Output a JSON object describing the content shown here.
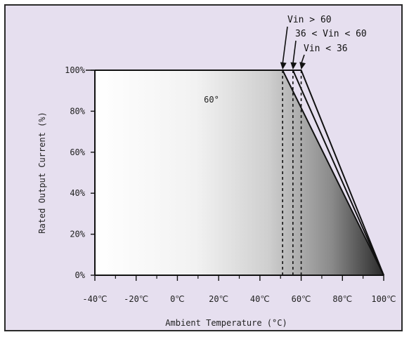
{
  "chart_data": {
    "type": "area",
    "title": "",
    "xlabel": "Ambient Temperature (°C)",
    "ylabel": "Rated Output Current (%)",
    "x_ticks": [
      {
        "value": -40,
        "label": "-40℃"
      },
      {
        "value": -20,
        "label": "-20℃"
      },
      {
        "value": 0,
        "label": "0℃"
      },
      {
        "value": 20,
        "label": "20℃"
      },
      {
        "value": 40,
        "label": "40℃"
      },
      {
        "value": 60,
        "label": "60℃"
      },
      {
        "value": 80,
        "label": "80℃"
      },
      {
        "value": 100,
        "label": "100℃"
      }
    ],
    "y_ticks": [
      {
        "value": 0,
        "label": "0%"
      },
      {
        "value": 20,
        "label": "20%"
      },
      {
        "value": 40,
        "label": "40%"
      },
      {
        "value": 60,
        "label": "60%"
      },
      {
        "value": 80,
        "label": "80%"
      },
      {
        "value": 100,
        "label": "100%"
      }
    ],
    "xlim": [
      -40,
      100
    ],
    "ylim": [
      0,
      100
    ],
    "grid": false,
    "series": [
      {
        "name": "Vin > 60",
        "x": [
          -40,
          51,
          100
        ],
        "y": [
          100,
          100,
          0
        ]
      },
      {
        "name": "36 < Vin < 60",
        "x": [
          -40,
          56,
          100
        ],
        "y": [
          100,
          100,
          0
        ]
      },
      {
        "name": "Vin < 36",
        "x": [
          -40,
          60,
          100
        ],
        "y": [
          100,
          100,
          0
        ]
      }
    ],
    "annotations": [
      {
        "text": "Vin > 60",
        "x": 51
      },
      {
        "text": "36 < Vin < 60",
        "x": 56
      },
      {
        "text": "Vin < 36",
        "x": 60
      }
    ],
    "region_label": "60°",
    "colors": {
      "background": "#e6dfef",
      "line": "#111111",
      "fill_light": "#ffffff",
      "fill_dark": "#2a2a2a"
    }
  }
}
